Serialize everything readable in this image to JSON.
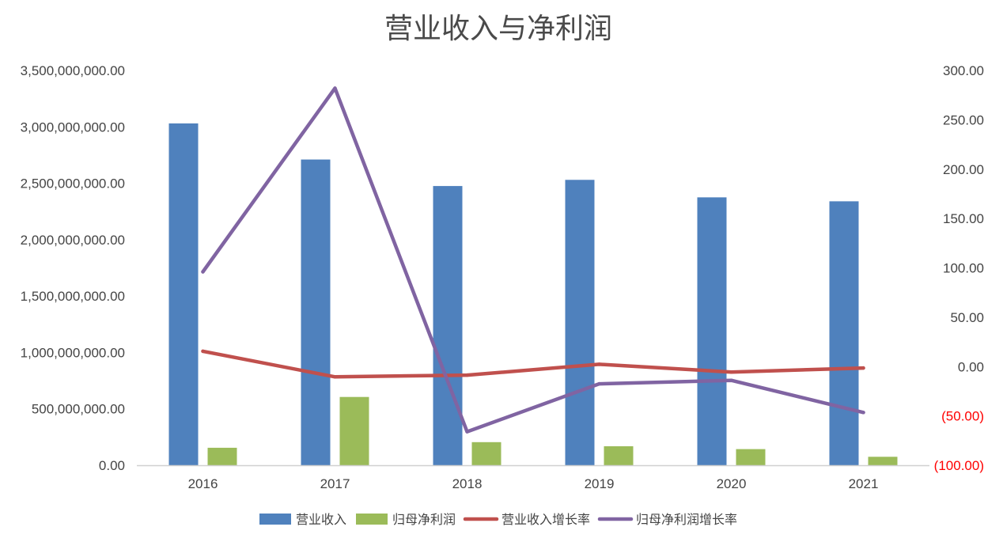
{
  "chart_data": {
    "type": "bar",
    "title": "营业收入与净利润",
    "categories": [
      "2016",
      "2017",
      "2018",
      "2019",
      "2020",
      "2021"
    ],
    "series": [
      {
        "name": "营业收入",
        "type": "bar",
        "axis": "left",
        "color": "#4f81bd",
        "values": [
          3030000000,
          2710000000,
          2475000000,
          2530000000,
          2375000000,
          2340000000
        ]
      },
      {
        "name": "归母净利润",
        "type": "bar",
        "axis": "left",
        "color": "#9bbb59",
        "values": [
          155000000,
          605000000,
          205000000,
          168000000,
          143000000,
          75000000
        ]
      },
      {
        "name": "营业收入增长率",
        "type": "line",
        "axis": "right",
        "color": "#c0504d",
        "values": [
          15.5,
          -10.5,
          -8.7,
          2.3,
          -5.6,
          -1.5
        ]
      },
      {
        "name": "归母净利润增长率",
        "type": "line",
        "axis": "right",
        "color": "#8064a2",
        "values": [
          96.0,
          282.0,
          -66.0,
          -17.5,
          -14.0,
          -46.5
        ]
      }
    ],
    "left_axis": {
      "ylim": [
        0,
        3500000000
      ],
      "ticks": [
        0,
        500000000,
        1000000000,
        1500000000,
        2000000000,
        2500000000,
        3000000000,
        3500000000
      ],
      "tick_labels": [
        "0.00",
        "500,000,000.00",
        "1,000,000,000.00",
        "1,500,000,000.00",
        "2,000,000,000.00",
        "2,500,000,000.00",
        "3,000,000,000.00",
        "3,500,000,000.00"
      ]
    },
    "right_axis": {
      "ylim": [
        -100,
        300
      ],
      "ticks": [
        -100,
        -50,
        0,
        50,
        100,
        150,
        200,
        250,
        300
      ],
      "tick_labels": [
        "(100.00)",
        "(50.00)",
        "0.00",
        "50.00",
        "100.00",
        "150.00",
        "200.00",
        "250.00",
        "300.00"
      ],
      "negative_label_color": "#ff0000"
    },
    "grid": false,
    "legend": "bottom"
  }
}
